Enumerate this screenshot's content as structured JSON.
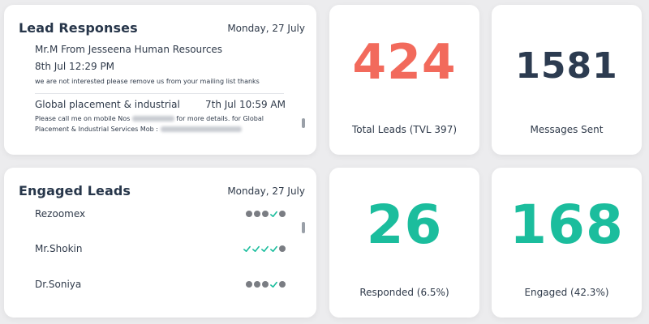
{
  "colors": {
    "background": "#ececee",
    "red": "#f26a5c",
    "dark": "#2c3b50",
    "teal": "#1bbd9d",
    "dot_grey": "#7a7d83"
  },
  "lead_responses": {
    "title": "Lead Responses",
    "date": "Monday, 27 July",
    "items": [
      {
        "sender": "Mr.M From Jesseena Human Resources",
        "time": "8th Jul 12:29 PM",
        "message": "we are not interested please remove us from your mailing list thanks"
      },
      {
        "sender": "Global placement & industrial",
        "time": "7th Jul 10:59 AM",
        "message_part1": "Please call me on mobile Nos",
        "message_part2": "for more details. for Global",
        "message_part3": "Placement & Industrial Services Mob :"
      }
    ]
  },
  "engaged_leads": {
    "title": "Engaged Leads",
    "date": "Monday, 27 July",
    "items": [
      {
        "name": "Rezoomex",
        "status": [
          "dot",
          "dot",
          "dot",
          "tick",
          "dot"
        ]
      },
      {
        "name": "Mr.Shokin",
        "status": [
          "tick",
          "tick",
          "tick",
          "tick",
          "dot"
        ]
      },
      {
        "name": "Dr.Soniya",
        "status": [
          "dot",
          "dot",
          "dot",
          "tick",
          "dot"
        ]
      }
    ]
  },
  "stats": {
    "total_leads": {
      "value": "424",
      "label": "Total Leads (TVL 397)",
      "color": "#f26a5c"
    },
    "messages_sent": {
      "value": "1581",
      "label": "Messages Sent",
      "color": "#2c3b50"
    },
    "responded": {
      "value": "26",
      "label": "Responded (6.5%)",
      "color": "#1bbd9d"
    },
    "engaged": {
      "value": "168",
      "label": "Engaged (42.3%)",
      "color": "#1bbd9d"
    }
  }
}
